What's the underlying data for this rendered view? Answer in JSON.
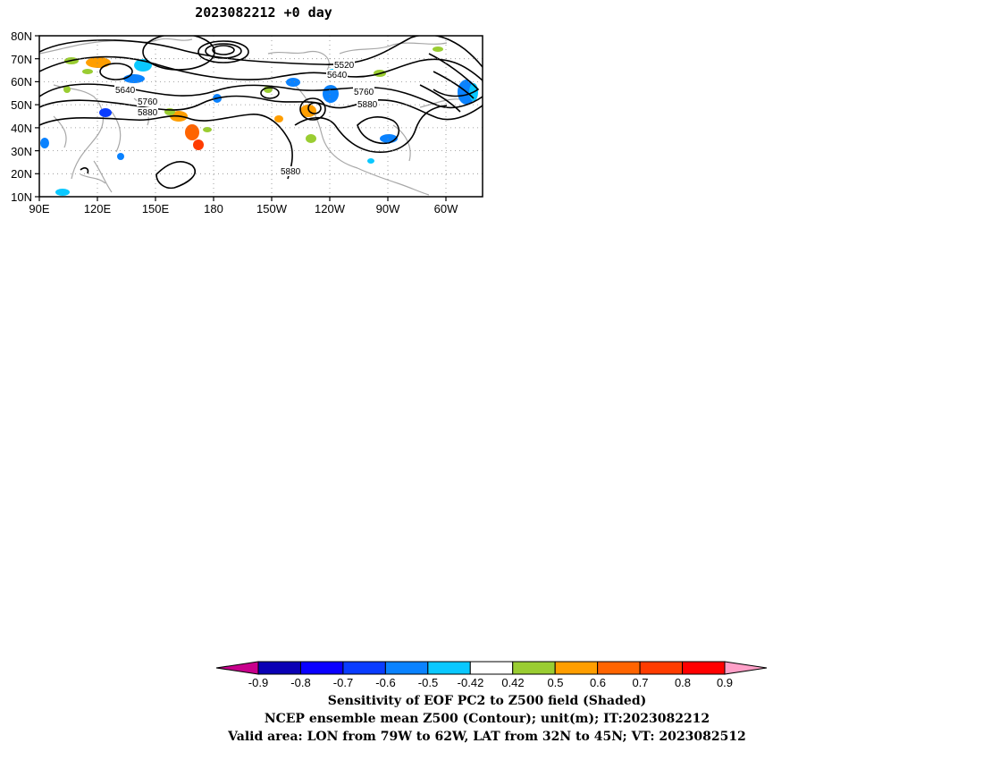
{
  "title": "2023082212  +0 day",
  "map": {
    "y_axis_labels": [
      "80N",
      "70N",
      "60N",
      "50N",
      "40N",
      "30N",
      "20N",
      "10N"
    ],
    "x_axis_labels": [
      "90E",
      "120E",
      "150E",
      "180",
      "150W",
      "120W",
      "90W",
      "60W"
    ],
    "contour_labels": [
      "5520",
      "5640",
      "5640",
      "5760",
      "5760",
      "5880",
      "5880",
      "5880"
    ]
  },
  "colorbar": {
    "labels": [
      "-0.9",
      "-0.8",
      "-0.7",
      "-0.6",
      "-0.5",
      "-0.42",
      "0.42",
      "0.5",
      "0.6",
      "0.7",
      "0.8",
      "0.9"
    ],
    "colors": [
      "#0a00b4",
      "#0a00ff",
      "#0a3cff",
      "#0a82ff",
      "#0ac8ff",
      "#ffffff",
      "#9acd32",
      "#ff9e00",
      "#ff6400",
      "#ff3c00",
      "#ff0000"
    ],
    "low_end_color": "#c8008c",
    "high_end_color": "#ffa0c8"
  },
  "captions": {
    "line1": "Sensitivity of EOF PC2 to Z500 field (Shaded)",
    "line2": "NCEP ensemble mean Z500 (Contour); unit(m); IT:2023082212",
    "line3": "Valid area: LON from 79W to 62W, LAT from 32N to 45N; VT: 2023082512"
  }
}
